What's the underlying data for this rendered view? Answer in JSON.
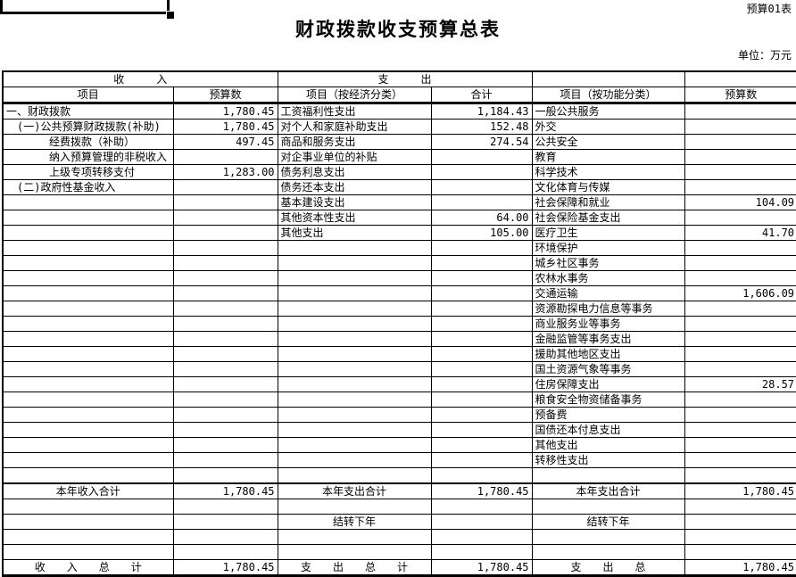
{
  "page": {
    "sheet_label": "预算01表",
    "title": "财政拨款收支预算总表",
    "unit_label": "单位：万元"
  },
  "colors": {
    "text": "#000000",
    "background": "#ffffff",
    "grid": "#000000"
  },
  "table": {
    "group_headers": [
      {
        "label": "收　　　入",
        "span": 2
      },
      {
        "label": "支　　　出",
        "span": 2
      },
      {
        "label": "",
        "span": 1
      },
      {
        "label": "",
        "span": 1
      }
    ],
    "column_headers": [
      "项目",
      "预算数",
      "项目（按经济分类）",
      "合计",
      "项目（按功能分类）",
      "预算数"
    ],
    "rows": [
      {
        "cells": [
          "一、财政拨款",
          "1,780.45",
          "工资福利性支出",
          "1,184.43",
          "一般公共服务",
          ""
        ]
      },
      {
        "cells": [
          "　(一)公共预算财政拨款(补助)",
          "1,780.45",
          "对个人和家庭补助支出",
          "152.48",
          "外交",
          ""
        ]
      },
      {
        "cells": [
          "　　　　经费拨款（补助）",
          "497.45",
          "商品和服务支出",
          "274.54",
          "公共安全",
          ""
        ]
      },
      {
        "cells": [
          "　　　　纳入预算管理的非税收入",
          "",
          "对企事业单位的补贴",
          "",
          "教育",
          ""
        ]
      },
      {
        "cells": [
          "　　　　上级专项转移支付",
          "1,283.00",
          "债务利息支出",
          "",
          "科学技术",
          ""
        ]
      },
      {
        "cells": [
          "　(二)政府性基金收入",
          "",
          "债务还本支出",
          "",
          "文化体育与传媒",
          ""
        ]
      },
      {
        "cells": [
          "",
          "",
          "基本建设支出",
          "",
          "社会保障和就业",
          "104.09"
        ]
      },
      {
        "cells": [
          "",
          "",
          "其他资本性支出",
          "64.00",
          "社会保险基金支出",
          ""
        ]
      },
      {
        "cells": [
          "",
          "",
          "其他支出",
          "105.00",
          "医疗卫生",
          "41.70"
        ]
      },
      {
        "cells": [
          "",
          "",
          "",
          "",
          "环境保护",
          ""
        ]
      },
      {
        "cells": [
          "",
          "",
          "",
          "",
          "城乡社区事务",
          ""
        ]
      },
      {
        "cells": [
          "",
          "",
          "",
          "",
          "农林水事务",
          ""
        ]
      },
      {
        "cells": [
          "",
          "",
          "",
          "",
          "交通运输",
          "1,606.09"
        ]
      },
      {
        "cells": [
          "",
          "",
          "",
          "",
          "资源勘探电力信息等事务",
          ""
        ]
      },
      {
        "cells": [
          "",
          "",
          "",
          "",
          "商业服务业等事务",
          ""
        ]
      },
      {
        "cells": [
          "",
          "",
          "",
          "",
          "金融监管等事务支出",
          ""
        ]
      },
      {
        "cells": [
          "",
          "",
          "",
          "",
          "援助其他地区支出",
          ""
        ]
      },
      {
        "cells": [
          "",
          "",
          "",
          "",
          "国土资源气象等事务",
          ""
        ]
      },
      {
        "cells": [
          "",
          "",
          "",
          "",
          "住房保障支出",
          "28.57"
        ]
      },
      {
        "cells": [
          "",
          "",
          "",
          "",
          "粮食安全物资储备事务",
          ""
        ]
      },
      {
        "cells": [
          "",
          "",
          "",
          "",
          "预备费",
          ""
        ]
      },
      {
        "cells": [
          "",
          "",
          "",
          "",
          "国债还本付息支出",
          ""
        ]
      },
      {
        "cells": [
          "",
          "",
          "",
          "",
          "其他支出",
          ""
        ]
      },
      {
        "cells": [
          "",
          "",
          "",
          "",
          "转移性支出",
          ""
        ]
      },
      {
        "cells": [
          "",
          "",
          "",
          "",
          "",
          ""
        ]
      },
      {
        "cells": [
          "本年收入合计",
          "1,780.45",
          "本年支出合计",
          "1,780.45",
          "本年支出合计",
          "1,780.45"
        ],
        "align": "center",
        "thick_top": true
      },
      {
        "cells": [
          "",
          "",
          "",
          "",
          "",
          ""
        ]
      },
      {
        "cells": [
          "",
          "",
          "结转下年",
          "",
          "结转下年",
          ""
        ],
        "align": "center"
      },
      {
        "cells": [
          "",
          "",
          "",
          "",
          "",
          ""
        ]
      },
      {
        "cells": [
          "",
          "",
          "",
          "",
          "",
          ""
        ]
      },
      {
        "cells": [
          "收　　入　　总　　计",
          "1,780.45",
          "支　　出　　总　　计",
          "1,780.45",
          "支　　出　　总",
          "1,780.45"
        ],
        "align": "center"
      }
    ]
  }
}
